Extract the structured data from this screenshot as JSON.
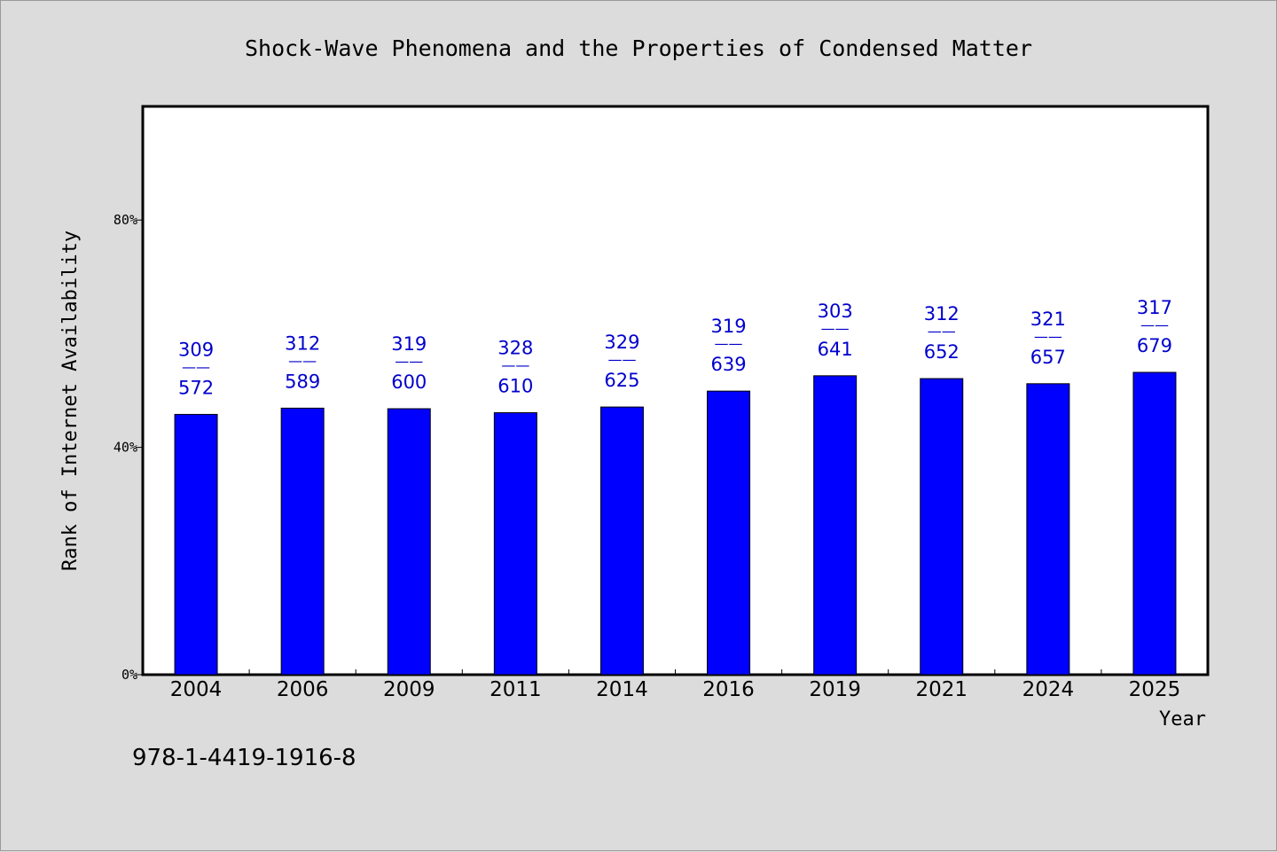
{
  "chart_data": {
    "type": "bar",
    "title": "Shock-Wave Phenomena and the Properties of Condensed Matter",
    "xlabel": "Year",
    "ylabel": "Rank of Internet Availability",
    "ylim": [
      0,
      100
    ],
    "yticks": [
      {
        "value": 0,
        "label": "0%"
      },
      {
        "value": 40,
        "label": "40%"
      },
      {
        "value": 80,
        "label": "80%"
      }
    ],
    "categories": [
      "2004",
      "2006",
      "2009",
      "2011",
      "2014",
      "2016",
      "2019",
      "2021",
      "2024",
      "2025"
    ],
    "values": [
      45.8,
      46.9,
      46.8,
      46.1,
      47.1,
      49.9,
      52.6,
      52.1,
      51.2,
      53.2
    ],
    "labels": [
      {
        "top": "309",
        "mid": "——",
        "bottom": "572"
      },
      {
        "top": "312",
        "mid": "——",
        "bottom": "589"
      },
      {
        "top": "319",
        "mid": "——",
        "bottom": "600"
      },
      {
        "top": "328",
        "mid": "——",
        "bottom": "610"
      },
      {
        "top": "329",
        "mid": "——",
        "bottom": "625"
      },
      {
        "top": "319",
        "mid": "——",
        "bottom": "639"
      },
      {
        "top": "303",
        "mid": "——",
        "bottom": "641"
      },
      {
        "top": "312",
        "mid": "——",
        "bottom": "652"
      },
      {
        "top": "321",
        "mid": "——",
        "bottom": "657"
      },
      {
        "top": "317",
        "mid": "——",
        "bottom": "679"
      }
    ],
    "colors": {
      "bar": "#0000ff",
      "label": "#0000cc",
      "plot_bg": "#ffffff",
      "page_bg": "#dcdcdc"
    },
    "grid": false,
    "legend": "none"
  },
  "footer": {
    "isbn": "978-1-4419-1916-8"
  }
}
